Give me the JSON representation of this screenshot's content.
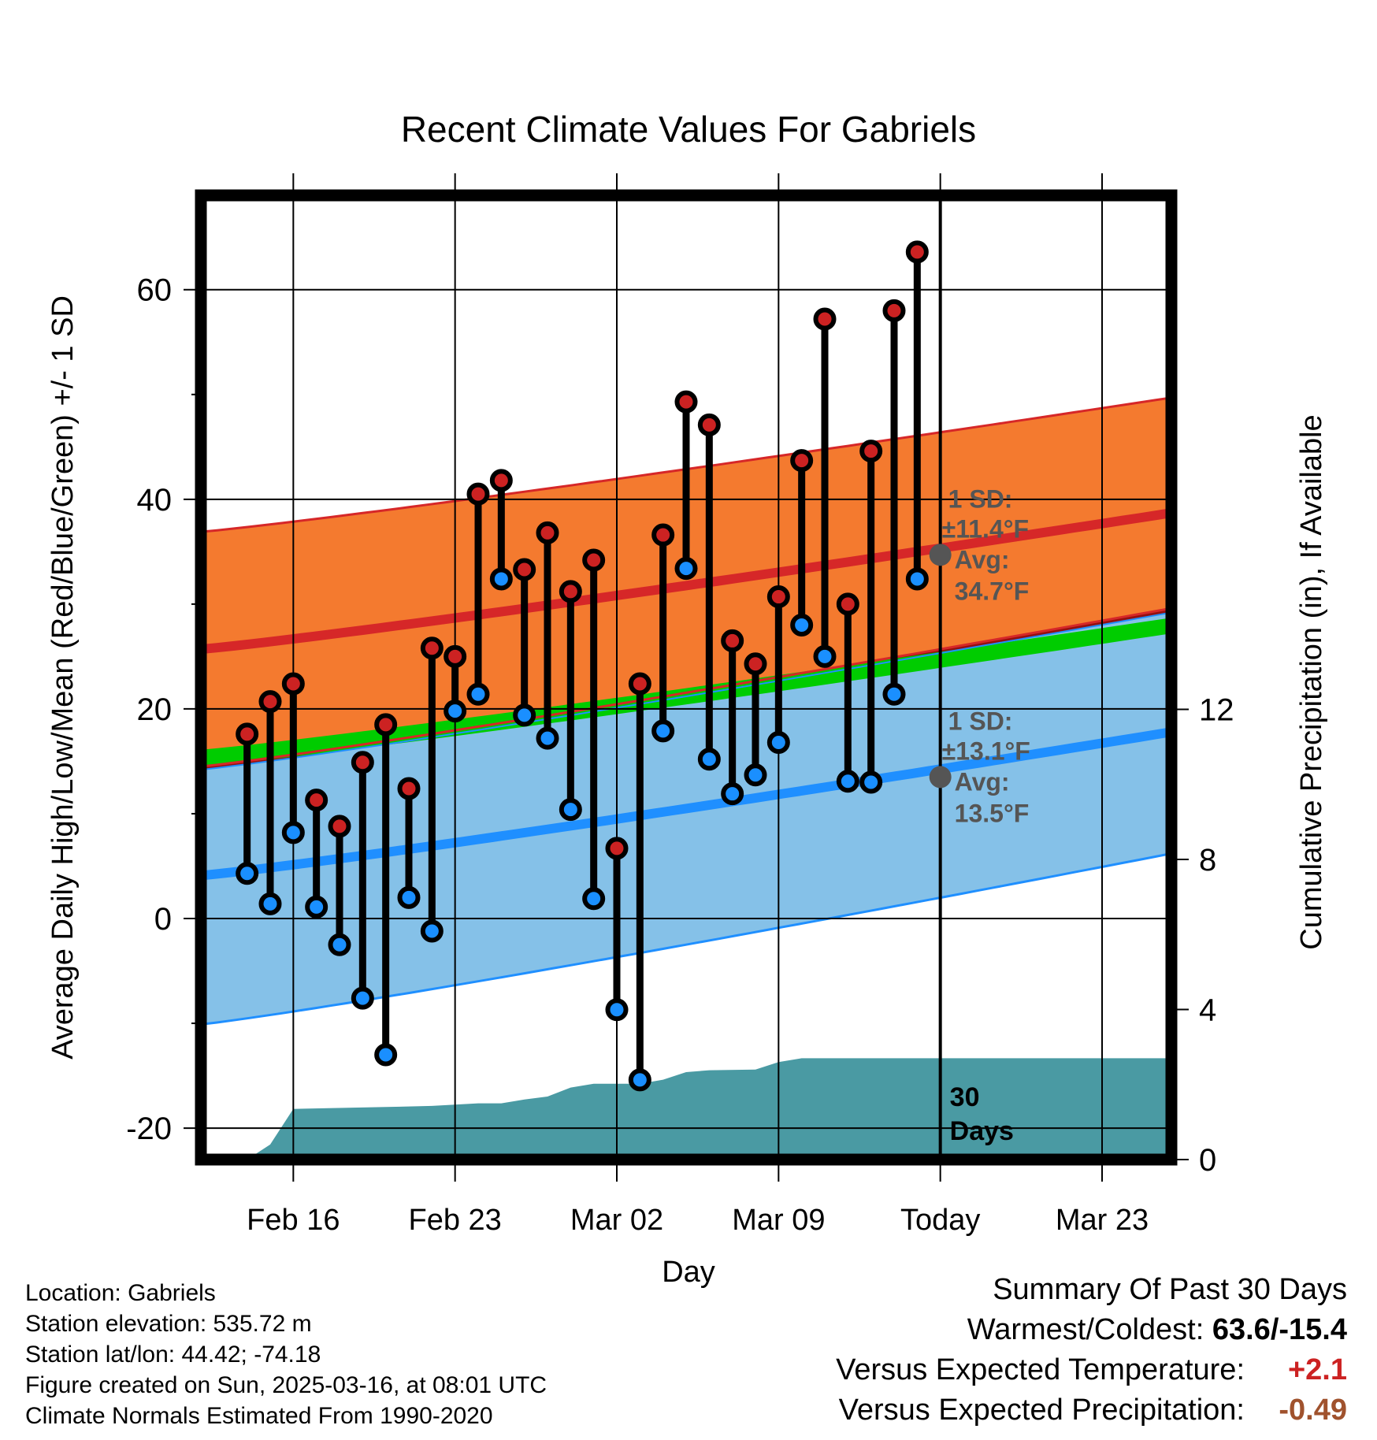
{
  "chart_data": {
    "type": "line",
    "title": "Recent Climate Values For Gabriels",
    "xlabel": "Day",
    "ylabel": "Average Daily High/Low/Mean (Red/Blue/Green) +/- 1 SD",
    "y2label": "Cumulative Precipitation (in), If Available",
    "ylim": [
      -23,
      69
    ],
    "y2lim": [
      0,
      25.7
    ],
    "y_ticks": [
      "60",
      "40",
      "20",
      "0",
      "-20"
    ],
    "y_tick_values": [
      60,
      40,
      20,
      0,
      -20
    ],
    "y2_ticks": [
      "12",
      "8",
      "4",
      "0"
    ],
    "y2_tick_values": [
      12,
      8,
      4,
      0
    ],
    "x_range_days": [
      "2025-02-12",
      "2025-03-26"
    ],
    "x_tick_labels": [
      "Feb 16",
      "Feb 23",
      "Mar 02",
      "Mar 09",
      "Today",
      "Mar 23"
    ],
    "x_tick_dates": [
      "2025-02-16",
      "2025-02-23",
      "2025-03-02",
      "2025-03-09",
      "2025-03-16",
      "2025-03-23"
    ],
    "grid": true,
    "today": "2025-03-16",
    "today_label": [
      "30",
      "Days"
    ],
    "observed": {
      "dates": [
        "2025-02-14",
        "2025-02-15",
        "2025-02-16",
        "2025-02-17",
        "2025-02-18",
        "2025-02-19",
        "2025-02-20",
        "2025-02-21",
        "2025-02-22",
        "2025-02-23",
        "2025-02-24",
        "2025-02-25",
        "2025-02-26",
        "2025-02-27",
        "2025-02-28",
        "2025-03-01",
        "2025-03-02",
        "2025-03-03",
        "2025-03-04",
        "2025-03-05",
        "2025-03-06",
        "2025-03-07",
        "2025-03-08",
        "2025-03-09",
        "2025-03-10",
        "2025-03-11",
        "2025-03-12",
        "2025-03-13",
        "2025-03-14",
        "2025-03-15"
      ],
      "high": [
        17.6,
        20.7,
        22.4,
        11.3,
        8.8,
        14.9,
        18.5,
        12.4,
        25.8,
        25.0,
        40.5,
        41.8,
        33.3,
        36.8,
        31.2,
        34.2,
        6.7,
        22.4,
        36.6,
        49.3,
        47.1,
        26.5,
        24.3,
        30.7,
        43.7,
        57.2,
        30.0,
        44.6,
        58.0,
        63.6
      ],
      "low": [
        4.3,
        1.4,
        8.2,
        1.1,
        -2.5,
        -7.6,
        -13.0,
        2.0,
        -1.2,
        19.8,
        21.4,
        32.4,
        19.4,
        17.2,
        10.4,
        1.9,
        -8.7,
        -15.4,
        17.9,
        33.4,
        15.2,
        11.9,
        13.7,
        16.8,
        28.0,
        25.0,
        13.1,
        13.0,
        21.4,
        32.4
      ],
      "high_color": "#cc2222",
      "low_color": "#1a8fff"
    },
    "normals": {
      "high_mean": [
        25.7,
        38.7
      ],
      "high_sd_band": [
        [
          36.9,
          14.5
        ],
        [
          49.7,
          29.6
        ]
      ],
      "low_mean": [
        4.1,
        17.8
      ],
      "low_sd_band": [
        [
          14.2,
          -10.1
        ],
        [
          29.2,
          6.2
        ]
      ],
      "mean_band": [
        [
          16.1,
          14.5
        ],
        [
          28.7,
          27.2
        ]
      ],
      "high_band_color": "#f47a2f",
      "high_line_color": "#d62728",
      "low_band_color": "#85c1e8",
      "low_line_color": "#1f8fff",
      "mean_color": "#00cc00",
      "overlap_color": "#941010"
    },
    "precip": {
      "dates": [
        "2025-02-12",
        "2025-02-14",
        "2025-02-15",
        "2025-02-16",
        "2025-02-20",
        "2025-02-22",
        "2025-02-24",
        "2025-02-25",
        "2025-02-26",
        "2025-02-27",
        "2025-02-28",
        "2025-03-01",
        "2025-03-02",
        "2025-03-03",
        "2025-03-04",
        "2025-03-05",
        "2025-03-06",
        "2025-03-08",
        "2025-03-09",
        "2025-03-10",
        "2025-03-16",
        "2025-03-26"
      ],
      "values": [
        0,
        0,
        0.4,
        1.35,
        1.4,
        1.43,
        1.5,
        1.5,
        1.6,
        1.68,
        1.92,
        2.02,
        2.02,
        2.02,
        2.13,
        2.33,
        2.38,
        2.4,
        2.6,
        2.7,
        2.7,
        2.7
      ],
      "color": "#4a9aa3"
    },
    "annotations": {
      "high": {
        "line1": "1 SD:",
        "line2": "±11.4",
        "line3": "Avg:",
        "line4": "34.7",
        "unit": "°F",
        "marker_value": 34.7
      },
      "low": {
        "line1": "1 SD:",
        "line2": "±13.1",
        "line3": "Avg:",
        "line4": "13.5",
        "unit": "°F",
        "marker_value": 13.5
      },
      "color": "#555555"
    }
  },
  "info": {
    "location": "Location: Gabriels",
    "elevation": "Station elevation: 535.72 m",
    "latlon": "Station lat/lon: 44.42; -74.18",
    "created": "Figure created on Sun, 2025-03-16, at 08:01 UTC",
    "normals": "Climate Normals Estimated From 1990-2020"
  },
  "summary": {
    "title": "Summary Of Past 30 Days",
    "warm_cold_label": "Warmest/Coldest:",
    "warm_cold_value": "63.6/-15.4",
    "temp_label": "Versus Expected Temperature:",
    "temp_value": "+2.1",
    "temp_color": "#cc2222",
    "precip_label": "Versus Expected Precipitation:",
    "precip_value": "-0.49",
    "precip_color": "#a0522d"
  }
}
